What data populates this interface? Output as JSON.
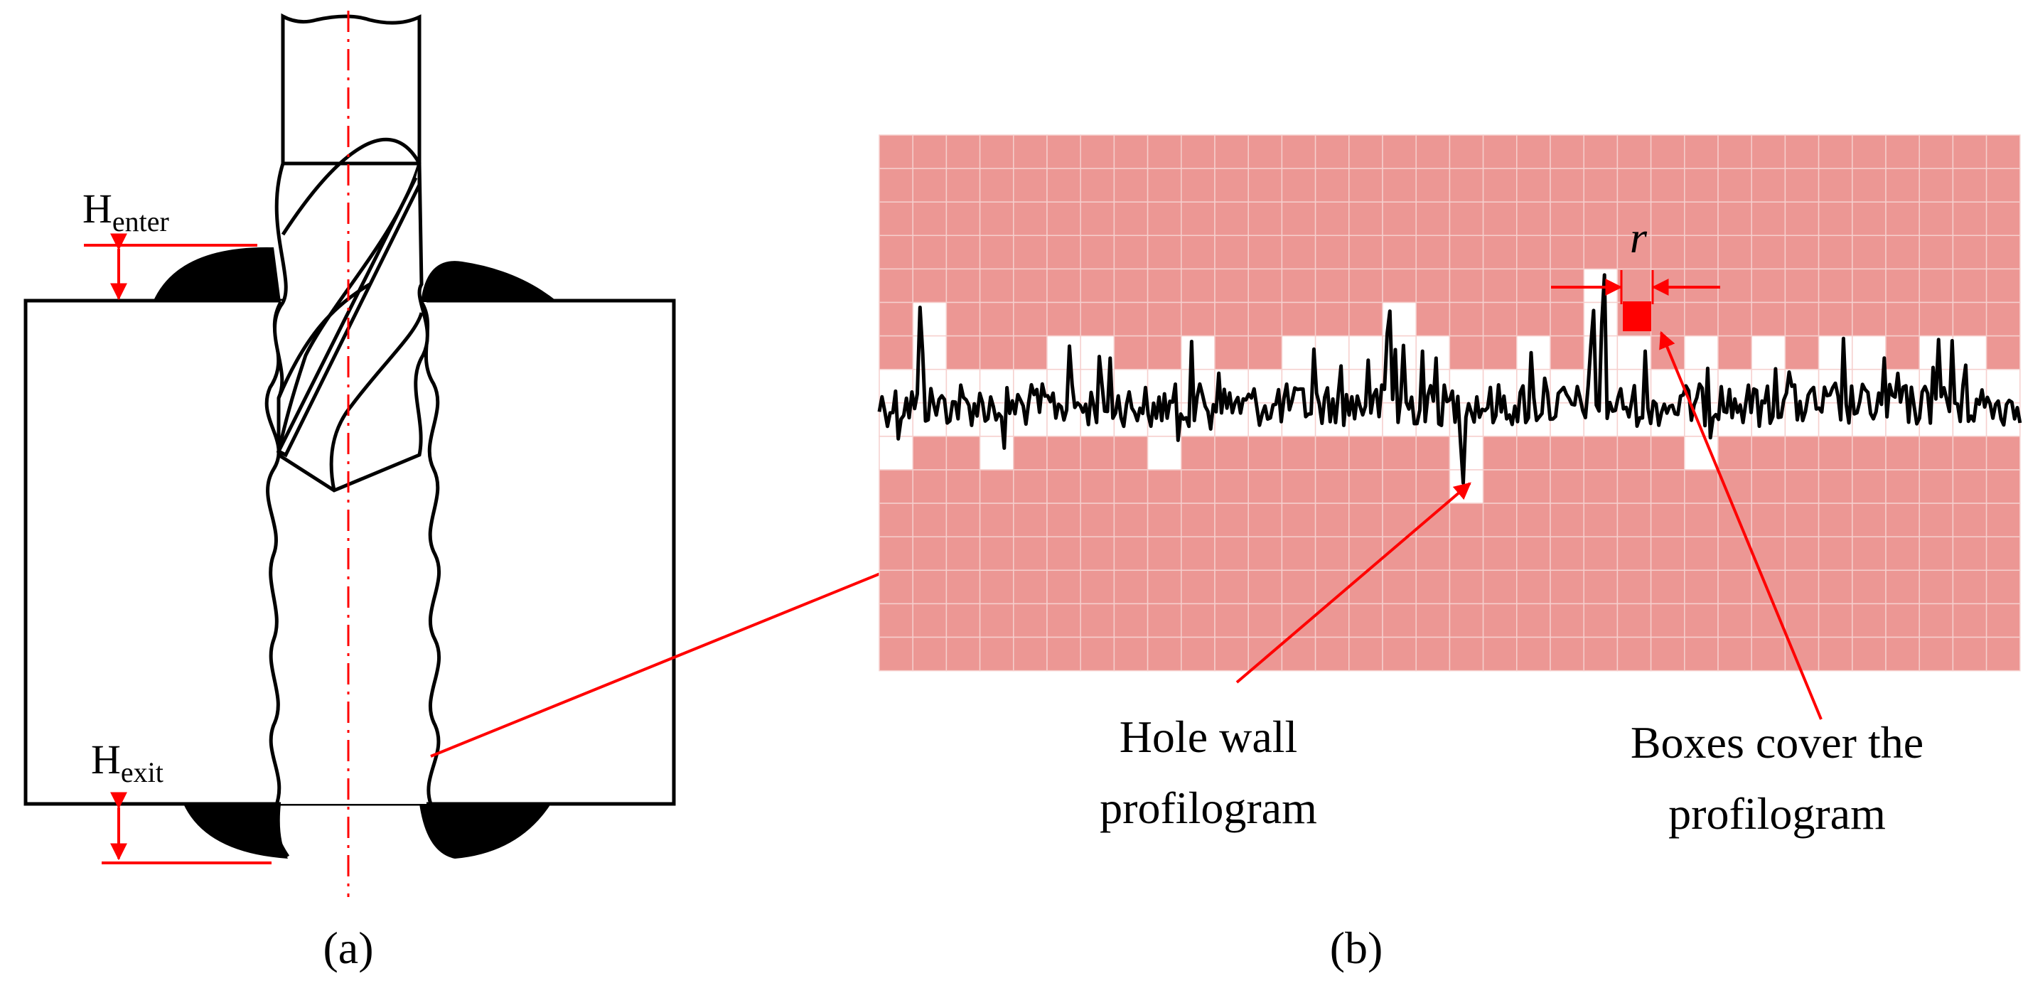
{
  "panel_a": {
    "caption": "(a)",
    "h_enter": {
      "main": "H",
      "sub": "enter"
    },
    "h_exit": {
      "main": "H",
      "sub": "exit"
    }
  },
  "panel_b": {
    "caption": "(b)",
    "r_label": "r",
    "callout_wall_line1": "Hole wall",
    "callout_wall_line2": "profilogram",
    "callout_boxes_line1": "Boxes cover the",
    "callout_boxes_line2": "profilogram"
  },
  "colors": {
    "box_fill": "#ec9794",
    "annotation_red": "#ff0000",
    "ink": "#000000",
    "background": "#ffffff"
  }
}
